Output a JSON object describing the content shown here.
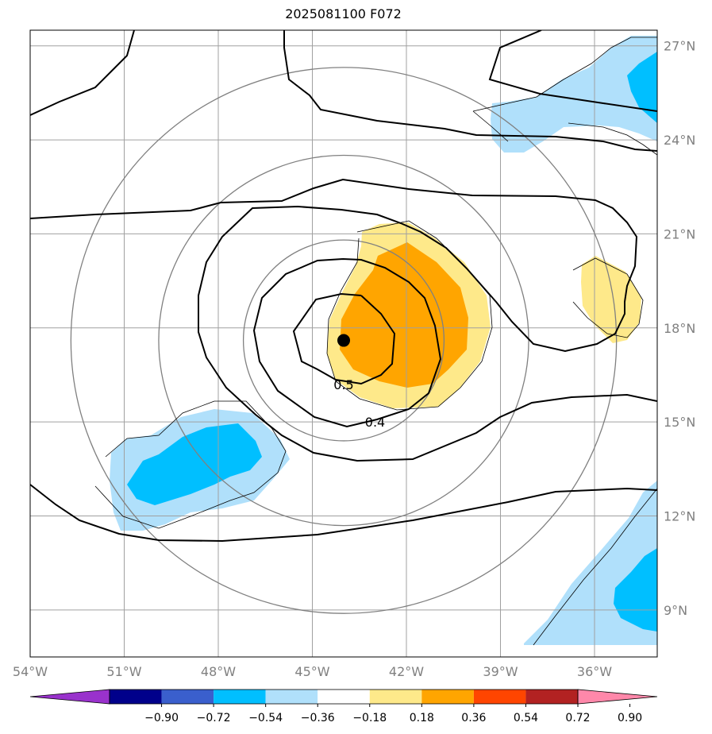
{
  "title": "2025081100 F072",
  "map": {
    "lon_range": [
      -54,
      -34
    ],
    "lat_range": [
      7.5,
      27.5
    ],
    "lat_ticks": [
      {
        "value": 27,
        "label": "27°N"
      },
      {
        "value": 24,
        "label": "24°N"
      },
      {
        "value": 21,
        "label": "21°N"
      },
      {
        "value": 18,
        "label": "18°N"
      },
      {
        "value": 15,
        "label": "15°N"
      },
      {
        "value": 12,
        "label": "12°N"
      },
      {
        "value": 9,
        "label": "9°N"
      }
    ],
    "lon_ticks": [
      {
        "value": -54,
        "label": "54°W"
      },
      {
        "value": -51,
        "label": "51°W"
      },
      {
        "value": -48,
        "label": "48°W"
      },
      {
        "value": -45,
        "label": "45°W"
      },
      {
        "value": -42,
        "label": "42°W"
      },
      {
        "value": -39,
        "label": "39°W"
      },
      {
        "value": -36,
        "label": "36°W"
      }
    ],
    "center_marker": {
      "lon": -44.0,
      "lat": 17.6
    },
    "range_ring_center": {
      "lon": -44.0,
      "lat": 17.6
    },
    "range_ring_radii_deg": [
      3.2,
      5.9,
      8.7
    ],
    "contour_labels": [
      {
        "text": "0.5",
        "lon": -44.0,
        "lat": 16.2
      },
      {
        "text": "0.4",
        "lon": -43.0,
        "lat": 15.0
      }
    ],
    "fill_colors": {
      "pos1": "#fee98a",
      "pos2": "#ffa500",
      "neg1": "#b0e0fb",
      "neg2": "#00bfff"
    },
    "grid_color": "#a0a0a0",
    "ring_color": "#808080"
  },
  "colorbar": {
    "ticks": [
      "−0.90",
      "−0.72",
      "−0.54",
      "−0.36",
      "−0.18",
      "0.18",
      "0.36",
      "0.54",
      "0.72",
      "0.90"
    ],
    "colors": [
      "#9932cc",
      "#00008b",
      "#3a5fcd",
      "#00bfff",
      "#b0e0fb",
      "#ffffff",
      "#fee98a",
      "#ffa500",
      "#ff4500",
      "#b22222",
      "#ff88aa"
    ]
  }
}
